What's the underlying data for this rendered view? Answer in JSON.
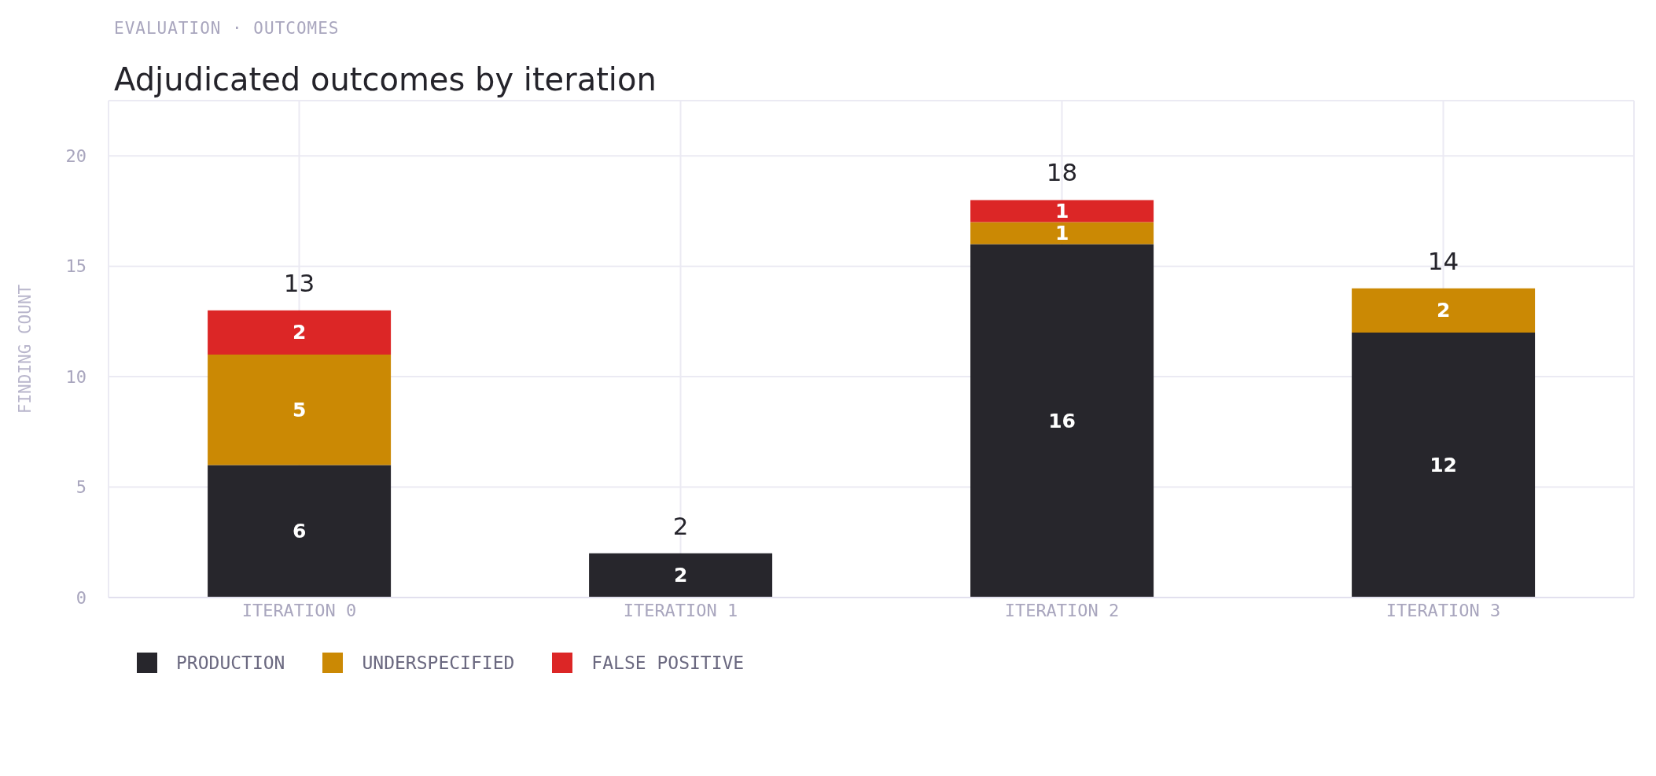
{
  "chart_data": {
    "type": "bar",
    "subtitle": "EVALUATION · OUTCOMES",
    "title": "Adjudicated outcomes by iteration",
    "ylabel": "FINDING COUNT",
    "categories": [
      "ITERATION 0",
      "ITERATION 1",
      "ITERATION 2",
      "ITERATION 3"
    ],
    "stacked": true,
    "series": [
      {
        "name": "PRODUCTION",
        "color": "#27262c",
        "values": [
          6,
          2,
          16,
          12
        ],
        "value_labels": [
          "6",
          "2",
          "16",
          "12"
        ]
      },
      {
        "name": "UNDERSPECIFIED",
        "color": "#cb8904",
        "values": [
          5,
          0,
          1,
          2
        ],
        "value_labels": [
          "5",
          null,
          "1",
          "2"
        ]
      },
      {
        "name": "FALSE POSITIVE",
        "color": "#dc2626",
        "values": [
          2,
          0,
          1,
          0
        ],
        "value_labels": [
          "2",
          null,
          "1",
          null
        ]
      }
    ],
    "totals": [
      "13",
      "2",
      "18",
      "14"
    ],
    "ylim": [
      0,
      22.5
    ],
    "yticks": [
      0,
      5,
      10,
      15,
      20
    ],
    "grid": true,
    "legend": "bottom left"
  }
}
